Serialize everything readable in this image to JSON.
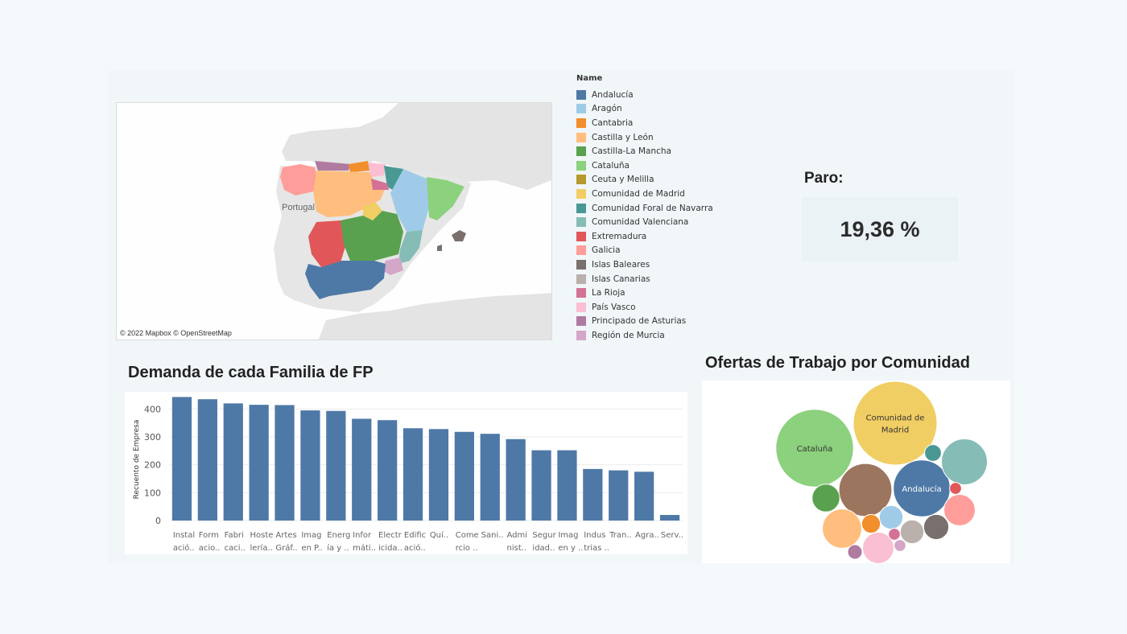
{
  "map": {
    "credit": "© 2022 Mapbox © OpenStreetMap",
    "country_label": "Portugal"
  },
  "legend": {
    "title": "Name",
    "items": [
      {
        "label": "Andalucía",
        "color": "#4e79a7"
      },
      {
        "label": "Aragón",
        "color": "#a0cbe8"
      },
      {
        "label": "Cantabria",
        "color": "#f28e2b"
      },
      {
        "label": "Castilla y León",
        "color": "#ffbe7d"
      },
      {
        "label": "Castilla-La Mancha",
        "color": "#59a14f"
      },
      {
        "label": "Cataluña",
        "color": "#8cd17d"
      },
      {
        "label": "Ceuta y Melilla",
        "color": "#b6992d"
      },
      {
        "label": "Comunidad de Madrid",
        "color": "#f1ce63"
      },
      {
        "label": "Comunidad Foral de Navarra",
        "color": "#499894"
      },
      {
        "label": "Comunidad Valenciana",
        "color": "#86bcb6"
      },
      {
        "label": "Extremadura",
        "color": "#e15759"
      },
      {
        "label": "Galicia",
        "color": "#ff9d9a"
      },
      {
        "label": "Islas Baleares",
        "color": "#79706e"
      },
      {
        "label": "Islas Canarias",
        "color": "#bab0ac"
      },
      {
        "label": "La Rioja",
        "color": "#d37295"
      },
      {
        "label": "País Vasco",
        "color": "#fabfd2"
      },
      {
        "label": "Principado de Asturias",
        "color": "#b07aa1"
      },
      {
        "label": "Región de Murcia",
        "color": "#d4a6c8"
      }
    ]
  },
  "kpi": {
    "label": "Paro:",
    "value": "19,36 %"
  },
  "chart_data": [
    {
      "type": "bar",
      "title": "Demanda de cada Familia de FP",
      "ylabel": "Recuento de Empresa",
      "xlabel": "",
      "ylim": [
        0,
        450
      ],
      "yticks": [
        0,
        100,
        200,
        300,
        400
      ],
      "grid": true,
      "color": "#4e79a7",
      "categories": [
        [
          "Instal",
          "ació.."
        ],
        [
          "Form",
          "acio.."
        ],
        [
          "Fabri",
          "caci.."
        ],
        [
          "Hoste",
          "lería.."
        ],
        [
          "Artes",
          "Gráf.."
        ],
        [
          "Imag",
          "en P.."
        ],
        [
          "Energ",
          "ía y .."
        ],
        [
          "Infor",
          "máti.."
        ],
        [
          "Electr",
          "icida.."
        ],
        [
          "Edific",
          "ació.."
        ],
        [
          "Quí..",
          ""
        ],
        [
          "Come",
          "rcio .."
        ],
        [
          "Sani..",
          ""
        ],
        [
          "Admi",
          "nist.."
        ],
        [
          "Segur",
          "idad.."
        ],
        [
          "Imag",
          "en y .."
        ],
        [
          "Indus",
          "trias .."
        ],
        [
          "Tran..",
          ""
        ],
        [
          "Agra..",
          ""
        ],
        [
          "Serv..",
          ""
        ]
      ],
      "values": [
        443,
        435,
        420,
        415,
        414,
        395,
        393,
        365,
        360,
        331,
        328,
        318,
        311,
        292,
        252,
        252,
        185,
        180,
        175,
        20
      ]
    },
    {
      "type": "bubble",
      "title": "Ofertas de Trabajo por Comunidad",
      "bubbles": [
        {
          "label": "Comunidad de Madrid",
          "lines": [
            "Comunidad de",
            "Madrid"
          ],
          "value": 100,
          "color": "#f1ce63"
        },
        {
          "label": "Cataluña",
          "lines": [
            "Cataluña"
          ],
          "value": 86,
          "color": "#8cd17d"
        },
        {
          "label": "Andalucía",
          "lines": [
            "Andalucía"
          ],
          "value": 46,
          "color": "#4e79a7"
        },
        {
          "label": "",
          "lines": [],
          "value": 40,
          "color": "#9c755f"
        },
        {
          "label": "",
          "lines": [],
          "value": 30,
          "color": "#86bcb6"
        },
        {
          "label": "",
          "lines": [],
          "value": 22,
          "color": "#ffbe7d"
        },
        {
          "label": "",
          "lines": [],
          "value": 14,
          "color": "#fabfd2"
        },
        {
          "label": "",
          "lines": [],
          "value": 14,
          "color": "#ff9d9a"
        },
        {
          "label": "",
          "lines": [],
          "value": 11,
          "color": "#59a14f"
        },
        {
          "label": "",
          "lines": [],
          "value": 9,
          "color": "#79706e"
        },
        {
          "label": "",
          "lines": [],
          "value": 8,
          "color": "#bab0ac"
        },
        {
          "label": "",
          "lines": [],
          "value": 8,
          "color": "#a0cbe8"
        },
        {
          "label": "",
          "lines": [],
          "value": 5,
          "color": "#f28e2b"
        },
        {
          "label": "",
          "lines": [],
          "value": 4,
          "color": "#499894"
        },
        {
          "label": "",
          "lines": [],
          "value": 3,
          "color": "#b07aa1"
        },
        {
          "label": "",
          "lines": [],
          "value": 2,
          "color": "#e15759"
        },
        {
          "label": "",
          "lines": [],
          "value": 2,
          "color": "#d37295"
        },
        {
          "label": "",
          "lines": [],
          "value": 2,
          "color": "#d4a6c8"
        }
      ]
    }
  ]
}
